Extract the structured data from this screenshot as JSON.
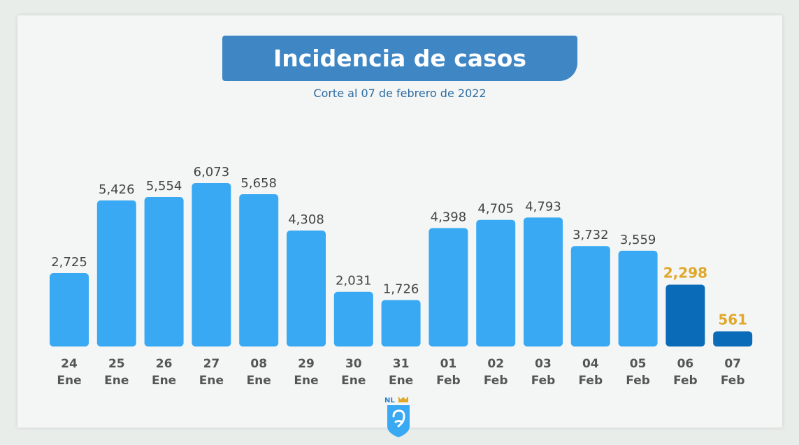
{
  "header": {
    "title": "Incidencia de casos",
    "subtitle": "Corte al 07 de febrero de 2022"
  },
  "logo": {
    "text": "NL",
    "icon": "nuevo-leon-shield-icon"
  },
  "colors": {
    "bar": "#3aa9f3",
    "bar_partial": "#0a6bb8",
    "label_default": "#444444",
    "label_partial": "#e0a82a",
    "axis_text": "#555555"
  },
  "chart_data": {
    "type": "bar",
    "title": "Incidencia de casos",
    "subtitle": "Corte al 07 de febrero de 2022",
    "xlabel": "",
    "ylabel": "",
    "categories": [
      [
        "24",
        "Ene"
      ],
      [
        "25",
        "Ene"
      ],
      [
        "26",
        "Ene"
      ],
      [
        "27",
        "Ene"
      ],
      [
        "08",
        "Ene"
      ],
      [
        "29",
        "Ene"
      ],
      [
        "30",
        "Ene"
      ],
      [
        "31",
        "Ene"
      ],
      [
        "01",
        "Feb"
      ],
      [
        "02",
        "Feb"
      ],
      [
        "03",
        "Feb"
      ],
      [
        "04",
        "Feb"
      ],
      [
        "05",
        "Feb"
      ],
      [
        "06",
        "Feb"
      ],
      [
        "07",
        "Feb"
      ]
    ],
    "values": [
      2725,
      5426,
      5554,
      6073,
      5658,
      4308,
      2031,
      1726,
      4398,
      4705,
      4793,
      3732,
      3559,
      2298,
      561
    ],
    "value_labels": [
      "2,725",
      "5,426",
      "5,554",
      "6,073",
      "5,658",
      "4,308",
      "2,031",
      "1,726",
      "4,398",
      "4,705",
      "4,793",
      "3,732",
      "3,559",
      "2,298",
      "561"
    ],
    "highlighted": [
      false,
      false,
      false,
      false,
      false,
      false,
      false,
      false,
      false,
      false,
      false,
      false,
      false,
      true,
      true
    ],
    "ylim": [
      0,
      6073
    ],
    "grid": false,
    "legend": "none"
  }
}
